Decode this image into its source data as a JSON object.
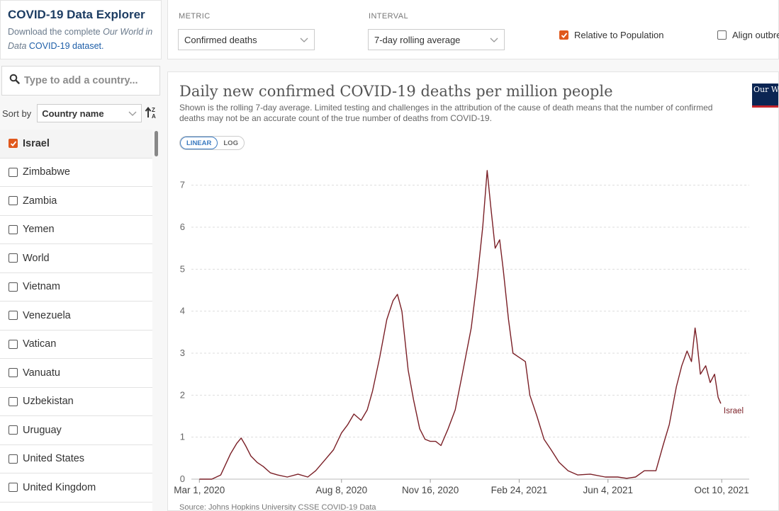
{
  "app": {
    "title": "COVID-19 Data Explorer",
    "sub_prefix": "Download the complete ",
    "sub_italic": "Our World in Data",
    "sub_link": "COVID-19 dataset."
  },
  "search": {
    "placeholder": "Type to add a country..."
  },
  "sort": {
    "label": "Sort by",
    "value": "Country name"
  },
  "countries": [
    {
      "name": "Israel",
      "checked": true
    },
    {
      "name": "Zimbabwe",
      "checked": false
    },
    {
      "name": "Zambia",
      "checked": false
    },
    {
      "name": "Yemen",
      "checked": false
    },
    {
      "name": "World",
      "checked": false
    },
    {
      "name": "Vietnam",
      "checked": false
    },
    {
      "name": "Venezuela",
      "checked": false
    },
    {
      "name": "Vatican",
      "checked": false
    },
    {
      "name": "Vanuatu",
      "checked": false
    },
    {
      "name": "Uzbekistan",
      "checked": false
    },
    {
      "name": "Uruguay",
      "checked": false
    },
    {
      "name": "United States",
      "checked": false
    },
    {
      "name": "United Kingdom",
      "checked": false
    }
  ],
  "controls": {
    "metric_label": "METRIC",
    "metric_value": "Confirmed deaths",
    "interval_label": "INTERVAL",
    "interval_value": "7-day rolling average",
    "relative_label": "Relative to Population",
    "relative_checked": true,
    "align_label": "Align outbreaks",
    "align_checked": false
  },
  "chart_panel": {
    "title": "Daily new confirmed COVID-19 deaths per million people",
    "subtitle": "Shown is the rolling 7-day average. Limited testing and challenges in the attribution of the cause of death means that the number of confirmed deaths may not be an accurate count of the true number of deaths from COVID-19.",
    "scale_linear": "LINEAR",
    "scale_log": "LOG",
    "logo_text": "Our World in Data",
    "source": "Source: Johns Hopkins University CSSE COVID-19 Data"
  },
  "chart_data": {
    "type": "line",
    "title": "Daily new confirmed COVID-19 deaths per million people",
    "ylim": [
      0,
      7.5
    ],
    "yticks": [
      0,
      1,
      2,
      3,
      4,
      5,
      6,
      7
    ],
    "xlim": [
      "2020-02-21",
      "2021-11-10"
    ],
    "xticks": [
      {
        "date": "2020-03-01",
        "label": "Mar 1, 2020"
      },
      {
        "date": "2020-08-08",
        "label": "Aug 8, 2020"
      },
      {
        "date": "2020-11-16",
        "label": "Nov 16, 2020"
      },
      {
        "date": "2021-02-24",
        "label": "Feb 24, 2021"
      },
      {
        "date": "2021-06-04",
        "label": "Jun 4, 2021"
      },
      {
        "date": "2021-10-10",
        "label": "Oct 10, 2021"
      }
    ],
    "grid": true,
    "line_color": "#7a1f26",
    "series": [
      {
        "name": "Israel",
        "points": [
          [
            "2020-03-01",
            0
          ],
          [
            "2020-03-15",
            0
          ],
          [
            "2020-03-25",
            0.1
          ],
          [
            "2020-04-05",
            0.6
          ],
          [
            "2020-04-12",
            0.85
          ],
          [
            "2020-04-17",
            0.98
          ],
          [
            "2020-04-22",
            0.8
          ],
          [
            "2020-04-28",
            0.55
          ],
          [
            "2020-05-05",
            0.4
          ],
          [
            "2020-05-12",
            0.3
          ],
          [
            "2020-05-20",
            0.15
          ],
          [
            "2020-05-28",
            0.1
          ],
          [
            "2020-06-08",
            0.05
          ],
          [
            "2020-06-20",
            0.12
          ],
          [
            "2020-07-01",
            0.05
          ],
          [
            "2020-07-10",
            0.2
          ],
          [
            "2020-07-20",
            0.45
          ],
          [
            "2020-07-30",
            0.7
          ],
          [
            "2020-08-08",
            1.1
          ],
          [
            "2020-08-15",
            1.3
          ],
          [
            "2020-08-22",
            1.55
          ],
          [
            "2020-08-30",
            1.4
          ],
          [
            "2020-09-06",
            1.65
          ],
          [
            "2020-09-12",
            2.1
          ],
          [
            "2020-09-20",
            2.9
          ],
          [
            "2020-09-28",
            3.8
          ],
          [
            "2020-10-05",
            4.25
          ],
          [
            "2020-10-10",
            4.4
          ],
          [
            "2020-10-15",
            4.0
          ],
          [
            "2020-10-22",
            2.6
          ],
          [
            "2020-10-28",
            1.9
          ],
          [
            "2020-11-04",
            1.2
          ],
          [
            "2020-11-10",
            0.95
          ],
          [
            "2020-11-16",
            0.9
          ],
          [
            "2020-11-22",
            0.9
          ],
          [
            "2020-11-28",
            0.8
          ],
          [
            "2020-12-06",
            1.2
          ],
          [
            "2020-12-14",
            1.65
          ],
          [
            "2020-12-22",
            2.5
          ],
          [
            "2021-01-01",
            3.6
          ],
          [
            "2021-01-08",
            4.8
          ],
          [
            "2021-01-14",
            6.0
          ],
          [
            "2021-01-19",
            7.35
          ],
          [
            "2021-01-23",
            6.5
          ],
          [
            "2021-01-28",
            5.5
          ],
          [
            "2021-02-02",
            5.7
          ],
          [
            "2021-02-06",
            5.0
          ],
          [
            "2021-02-12",
            3.8
          ],
          [
            "2021-02-17",
            3.0
          ],
          [
            "2021-02-24",
            2.9
          ],
          [
            "2021-03-03",
            2.8
          ],
          [
            "2021-03-08",
            2.0
          ],
          [
            "2021-03-16",
            1.5
          ],
          [
            "2021-03-24",
            0.95
          ],
          [
            "2021-04-01",
            0.7
          ],
          [
            "2021-04-10",
            0.4
          ],
          [
            "2021-04-20",
            0.2
          ],
          [
            "2021-05-01",
            0.1
          ],
          [
            "2021-05-15",
            0.12
          ],
          [
            "2021-06-01",
            0.05
          ],
          [
            "2021-06-15",
            0.05
          ],
          [
            "2021-06-25",
            0.02
          ],
          [
            "2021-07-05",
            0.05
          ],
          [
            "2021-07-15",
            0.2
          ],
          [
            "2021-07-28",
            0.2
          ],
          [
            "2021-08-05",
            0.8
          ],
          [
            "2021-08-12",
            1.3
          ],
          [
            "2021-08-20",
            2.2
          ],
          [
            "2021-08-26",
            2.7
          ],
          [
            "2021-09-01",
            3.05
          ],
          [
            "2021-09-06",
            2.8
          ],
          [
            "2021-09-10",
            3.6
          ],
          [
            "2021-09-12",
            3.3
          ],
          [
            "2021-09-16",
            2.5
          ],
          [
            "2021-09-22",
            2.7
          ],
          [
            "2021-09-27",
            2.3
          ],
          [
            "2021-10-02",
            2.5
          ],
          [
            "2021-10-06",
            1.95
          ],
          [
            "2021-10-09",
            1.8
          ]
        ]
      }
    ]
  }
}
